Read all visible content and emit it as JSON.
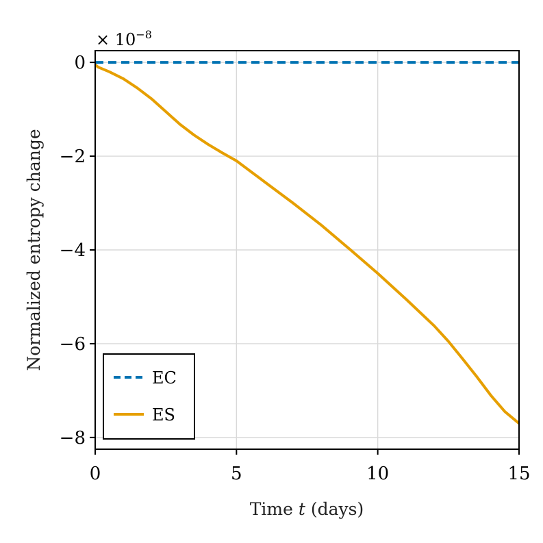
{
  "chart_data": {
    "type": "line",
    "title": "",
    "xlabel_prefix": "Time ",
    "xlabel_var": "t",
    "xlabel_suffix": " (days)",
    "ylabel": "Normalized entropy change",
    "y_exponent_base": "× 10",
    "y_exponent": "−8",
    "xlim": [
      0,
      15
    ],
    "ylim": [
      -8.25,
      0.25
    ],
    "xticks": [
      0,
      5,
      10,
      15
    ],
    "xtick_labels": [
      "0",
      "5",
      "10",
      "15"
    ],
    "yticks": [
      0,
      -2,
      -4,
      -6,
      -8
    ],
    "ytick_labels": [
      "0",
      "−2",
      "−4",
      "−6",
      "−8"
    ],
    "grid": true,
    "legend_position": "bottom-left",
    "series": [
      {
        "name": "EC",
        "color": "#0072b2",
        "style": "dashed",
        "x": [
          0,
          15
        ],
        "y": [
          0,
          0
        ]
      },
      {
        "name": "ES",
        "color": "#e69f00",
        "style": "solid",
        "x": [
          0,
          0.1,
          0.5,
          1.0,
          1.5,
          2.0,
          2.5,
          3.0,
          3.5,
          4.0,
          4.5,
          5.0,
          6.0,
          7.0,
          8.0,
          9.0,
          10.0,
          11.0,
          12.0,
          12.5,
          13.0,
          13.5,
          14.0,
          14.5,
          15.0
        ],
        "y": [
          -0.05,
          -0.1,
          -0.2,
          -0.35,
          -0.55,
          -0.78,
          -1.05,
          -1.32,
          -1.55,
          -1.75,
          -1.93,
          -2.1,
          -2.55,
          -3.0,
          -3.47,
          -3.98,
          -4.5,
          -5.05,
          -5.62,
          -5.95,
          -6.32,
          -6.7,
          -7.1,
          -7.45,
          -7.7
        ]
      }
    ]
  }
}
